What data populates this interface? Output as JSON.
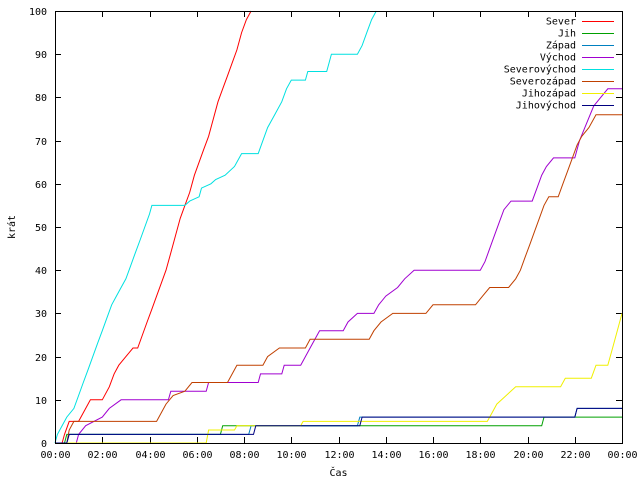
{
  "chart_data": {
    "type": "line",
    "title": "",
    "xlabel": "Čas",
    "ylabel": "krát",
    "xlim": [
      0,
      24
    ],
    "ylim": [
      0,
      100
    ],
    "grid": false,
    "legend_position": "top-right",
    "x_ticks": [
      {
        "value": 0,
        "label": "00:00"
      },
      {
        "value": 2,
        "label": "02:00"
      },
      {
        "value": 4,
        "label": "04:00"
      },
      {
        "value": 6,
        "label": "06:00"
      },
      {
        "value": 8,
        "label": "08:00"
      },
      {
        "value": 10,
        "label": "10:00"
      },
      {
        "value": 12,
        "label": "12:00"
      },
      {
        "value": 14,
        "label": "14:00"
      },
      {
        "value": 16,
        "label": "16:00"
      },
      {
        "value": 18,
        "label": "18:00"
      },
      {
        "value": 20,
        "label": "20:00"
      },
      {
        "value": 22,
        "label": "22:00"
      },
      {
        "value": 24,
        "label": "00:00"
      }
    ],
    "y_ticks": [
      0,
      10,
      20,
      30,
      40,
      50,
      60,
      70,
      80,
      90,
      100
    ],
    "series": [
      {
        "name": "Sever",
        "color": "#ff0000",
        "points": [
          [
            0,
            0
          ],
          [
            0.3,
            0
          ],
          [
            0.4,
            2
          ],
          [
            0.6,
            5
          ],
          [
            1.0,
            5
          ],
          [
            1.3,
            8
          ],
          [
            1.5,
            10
          ],
          [
            2.0,
            10
          ],
          [
            2.3,
            13
          ],
          [
            2.5,
            16
          ],
          [
            2.7,
            18
          ],
          [
            3.0,
            20
          ],
          [
            3.3,
            22
          ],
          [
            3.5,
            22
          ],
          [
            3.7,
            25
          ],
          [
            3.9,
            28
          ],
          [
            4.1,
            31
          ],
          [
            4.3,
            34
          ],
          [
            4.5,
            37
          ],
          [
            4.7,
            40
          ],
          [
            4.9,
            44
          ],
          [
            5.1,
            48
          ],
          [
            5.3,
            52
          ],
          [
            5.5,
            55
          ],
          [
            5.7,
            58
          ],
          [
            5.9,
            62
          ],
          [
            6.1,
            65
          ],
          [
            6.3,
            68
          ],
          [
            6.5,
            71
          ],
          [
            6.7,
            75
          ],
          [
            6.9,
            79
          ],
          [
            7.1,
            82
          ],
          [
            7.3,
            85
          ],
          [
            7.5,
            88
          ],
          [
            7.7,
            91
          ],
          [
            7.9,
            95
          ],
          [
            8.1,
            98
          ],
          [
            8.3,
            100
          ]
        ]
      },
      {
        "name": "Jih",
        "color": "#00a000",
        "points": [
          [
            0,
            0
          ],
          [
            0.4,
            0
          ],
          [
            0.5,
            2
          ],
          [
            7.0,
            2
          ],
          [
            7.1,
            4
          ],
          [
            20.6,
            4
          ],
          [
            20.7,
            6
          ],
          [
            24,
            6
          ]
        ]
      },
      {
        "name": "Západ",
        "color": "#0080c0",
        "points": [
          [
            0,
            0
          ],
          [
            0.5,
            0
          ],
          [
            0.6,
            2
          ],
          [
            8.2,
            2
          ],
          [
            8.3,
            4
          ],
          [
            12.8,
            4
          ],
          [
            12.9,
            6
          ],
          [
            22.0,
            6
          ],
          [
            22.1,
            8
          ],
          [
            24,
            8
          ]
        ]
      },
      {
        "name": "Východ",
        "color": "#a000d0",
        "points": [
          [
            0,
            0
          ],
          [
            0.9,
            0
          ],
          [
            1.0,
            2
          ],
          [
            1.3,
            4
          ],
          [
            2.0,
            6
          ],
          [
            2.3,
            8
          ],
          [
            2.8,
            10
          ],
          [
            4.8,
            10
          ],
          [
            4.9,
            12
          ],
          [
            6.4,
            12
          ],
          [
            6.5,
            14
          ],
          [
            8.6,
            14
          ],
          [
            8.7,
            16
          ],
          [
            9.6,
            16
          ],
          [
            9.7,
            18
          ],
          [
            10.4,
            18
          ],
          [
            10.6,
            20
          ],
          [
            10.8,
            22
          ],
          [
            11.0,
            24
          ],
          [
            11.2,
            26
          ],
          [
            12.2,
            26
          ],
          [
            12.4,
            28
          ],
          [
            12.8,
            30
          ],
          [
            13.5,
            30
          ],
          [
            13.7,
            32
          ],
          [
            14.0,
            34
          ],
          [
            14.5,
            36
          ],
          [
            14.8,
            38
          ],
          [
            15.2,
            40
          ],
          [
            18.0,
            40
          ],
          [
            18.2,
            42
          ],
          [
            18.4,
            45
          ],
          [
            18.6,
            48
          ],
          [
            18.8,
            51
          ],
          [
            19.0,
            54
          ],
          [
            19.3,
            56
          ],
          [
            20.2,
            56
          ],
          [
            20.4,
            59
          ],
          [
            20.6,
            62
          ],
          [
            20.8,
            64
          ],
          [
            21.1,
            66
          ],
          [
            22.0,
            66
          ],
          [
            22.2,
            70
          ],
          [
            22.5,
            74
          ],
          [
            22.8,
            78
          ],
          [
            23.1,
            80
          ],
          [
            23.4,
            82
          ],
          [
            24,
            82
          ]
        ]
      },
      {
        "name": "Severovýchod",
        "color": "#00e0e0",
        "points": [
          [
            0,
            0
          ],
          [
            0.1,
            2
          ],
          [
            0.3,
            4
          ],
          [
            0.5,
            6
          ],
          [
            0.8,
            8
          ],
          [
            1.0,
            11
          ],
          [
            1.2,
            14
          ],
          [
            1.4,
            17
          ],
          [
            1.6,
            20
          ],
          [
            1.8,
            23
          ],
          [
            2.0,
            26
          ],
          [
            2.2,
            29
          ],
          [
            2.4,
            32
          ],
          [
            2.6,
            34
          ],
          [
            2.8,
            36
          ],
          [
            3.0,
            38
          ],
          [
            3.2,
            41
          ],
          [
            3.4,
            44
          ],
          [
            3.6,
            47
          ],
          [
            3.8,
            50
          ],
          [
            4.0,
            53
          ],
          [
            4.1,
            55
          ],
          [
            5.5,
            55
          ],
          [
            5.7,
            56
          ],
          [
            6.1,
            57
          ],
          [
            6.2,
            59
          ],
          [
            6.6,
            60
          ],
          [
            6.8,
            61
          ],
          [
            7.2,
            62
          ],
          [
            7.6,
            64
          ],
          [
            7.9,
            67
          ],
          [
            8.6,
            67
          ],
          [
            8.8,
            70
          ],
          [
            9.0,
            73
          ],
          [
            9.3,
            76
          ],
          [
            9.6,
            79
          ],
          [
            9.8,
            82
          ],
          [
            10.0,
            84
          ],
          [
            10.6,
            84
          ],
          [
            10.7,
            86
          ],
          [
            11.5,
            86
          ],
          [
            11.6,
            88
          ],
          [
            11.7,
            90
          ],
          [
            12.8,
            90
          ],
          [
            13.0,
            92
          ],
          [
            13.2,
            95
          ],
          [
            13.4,
            98
          ],
          [
            13.6,
            100
          ]
        ]
      },
      {
        "name": "Severozápad",
        "color": "#c04000",
        "points": [
          [
            0,
            0
          ],
          [
            0.5,
            0
          ],
          [
            0.6,
            3
          ],
          [
            0.8,
            5
          ],
          [
            4.3,
            5
          ],
          [
            4.5,
            7
          ],
          [
            4.7,
            9
          ],
          [
            5.0,
            11
          ],
          [
            5.5,
            12
          ],
          [
            5.8,
            14
          ],
          [
            7.3,
            14
          ],
          [
            7.5,
            16
          ],
          [
            7.7,
            18
          ],
          [
            8.8,
            18
          ],
          [
            9.0,
            20
          ],
          [
            9.5,
            22
          ],
          [
            10.6,
            22
          ],
          [
            10.8,
            24
          ],
          [
            13.3,
            24
          ],
          [
            13.5,
            26
          ],
          [
            13.8,
            28
          ],
          [
            14.3,
            30
          ],
          [
            15.7,
            30
          ],
          [
            16.0,
            32
          ],
          [
            17.8,
            32
          ],
          [
            18.1,
            34
          ],
          [
            18.4,
            36
          ],
          [
            19.2,
            36
          ],
          [
            19.5,
            38
          ],
          [
            19.7,
            40
          ],
          [
            19.9,
            43
          ],
          [
            20.1,
            46
          ],
          [
            20.3,
            49
          ],
          [
            20.5,
            52
          ],
          [
            20.7,
            55
          ],
          [
            20.9,
            57
          ],
          [
            21.3,
            57
          ],
          [
            21.5,
            60
          ],
          [
            21.7,
            63
          ],
          [
            21.9,
            66
          ],
          [
            22.1,
            69
          ],
          [
            22.3,
            71
          ],
          [
            22.6,
            73
          ],
          [
            22.9,
            76
          ],
          [
            24,
            76
          ]
        ]
      },
      {
        "name": "Jihozápad",
        "color": "#f0f000",
        "points": [
          [
            0,
            0
          ],
          [
            6.4,
            0
          ],
          [
            6.5,
            3
          ],
          [
            7.6,
            3
          ],
          [
            7.7,
            4
          ],
          [
            10.4,
            4
          ],
          [
            10.5,
            5
          ],
          [
            18.3,
            5
          ],
          [
            18.5,
            7
          ],
          [
            18.7,
            9
          ],
          [
            19.1,
            11
          ],
          [
            19.5,
            13
          ],
          [
            21.4,
            13
          ],
          [
            21.6,
            15
          ],
          [
            22.7,
            15
          ],
          [
            22.9,
            18
          ],
          [
            23.4,
            18
          ],
          [
            23.6,
            22
          ],
          [
            23.8,
            26
          ],
          [
            24,
            30
          ]
        ]
      },
      {
        "name": "Jihovýchod",
        "color": "#000080",
        "points": [
          [
            0,
            0
          ],
          [
            0.5,
            0
          ],
          [
            0.6,
            2
          ],
          [
            8.4,
            2
          ],
          [
            8.5,
            4
          ],
          [
            12.9,
            4
          ],
          [
            13.0,
            6
          ],
          [
            22.0,
            6
          ],
          [
            22.1,
            8
          ],
          [
            24,
            8
          ]
        ]
      }
    ]
  }
}
